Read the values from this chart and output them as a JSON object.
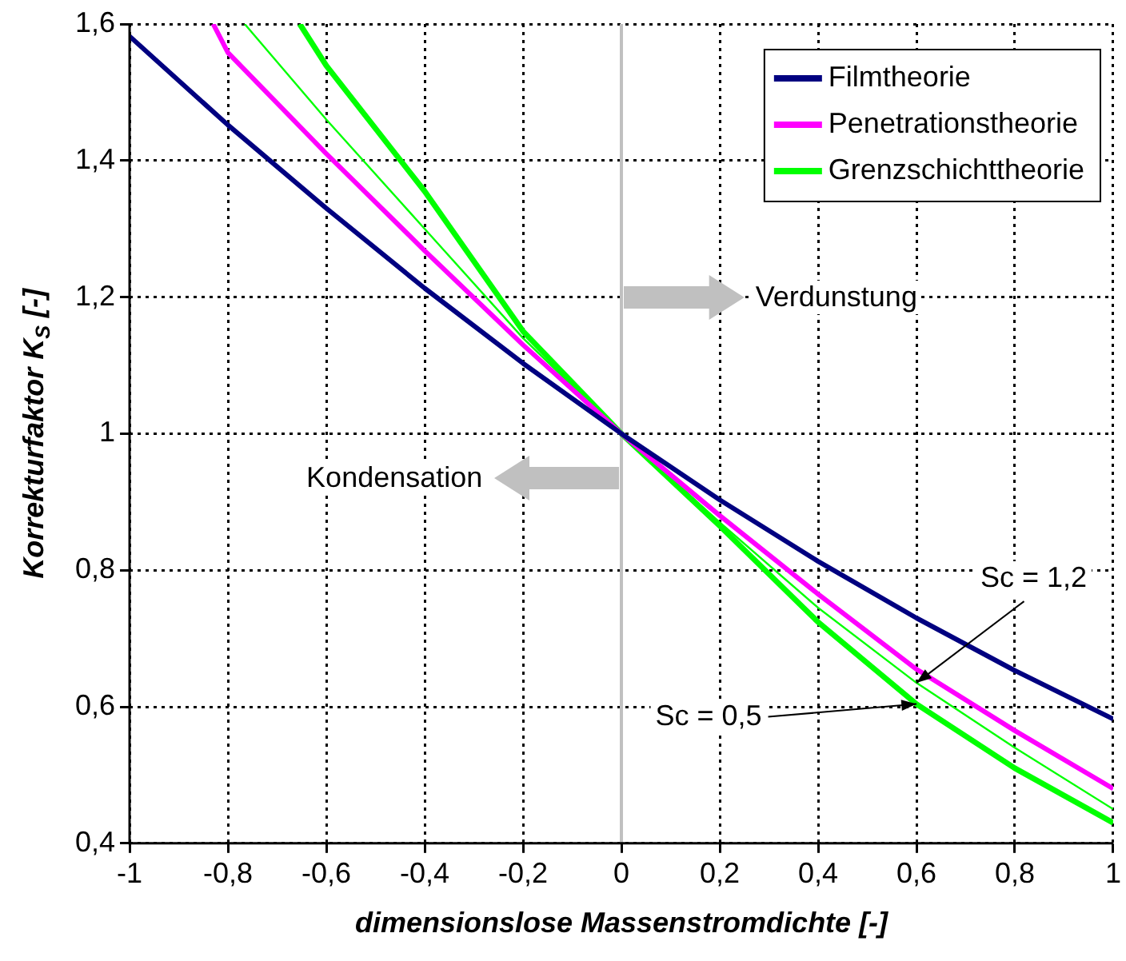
{
  "chart_data": {
    "type": "line",
    "xlabel": "dimensionslose Massenstromdichte [-]",
    "ylabel": "Korrekturfaktor K$_{S}$ [-]",
    "xlim": [
      -1,
      1
    ],
    "xticks": [
      -1,
      {
        "value": -0.8,
        "label": "-0,8"
      },
      {
        "value": -0.6,
        "label": "-0,6"
      },
      {
        "value": -0.4,
        "label": "-0,4"
      },
      {
        "value": -0.2,
        "label": "-0,2"
      },
      0,
      {
        "value": 0.2,
        "label": "0,2"
      },
      {
        "value": 0.4,
        "label": "0,4"
      },
      {
        "value": 0.6,
        "label": "0,6"
      },
      {
        "value": 0.8,
        "label": "0,8"
      },
      1
    ],
    "ylim": [
      0.4,
      1.6
    ],
    "yticks": [
      {
        "value": 0.4,
        "label": "0,4"
      },
      {
        "value": 0.6,
        "label": "0,6"
      },
      {
        "value": 0.8,
        "label": "0,8"
      },
      1,
      {
        "value": 1.2,
        "label": "1,2"
      },
      {
        "value": 1.4,
        "label": "1,4"
      },
      {
        "value": 1.6,
        "label": "1,6"
      }
    ],
    "grid": true,
    "legend": "top right",
    "marker": "none",
    "line_style": "solid",
    "series": [
      {
        "name": "Filmtheorie",
        "color": "#000080",
        "x": [
          -1,
          -0.8,
          -0.6,
          -0.4,
          -0.2,
          0,
          0.2,
          0.4,
          0.6,
          0.8,
          1
        ],
        "values": [
          1.582,
          1.452,
          1.33,
          1.213,
          1.103,
          1,
          0.903,
          0.813,
          0.73,
          0.653,
          0.582
        ]
      },
      {
        "name": "Penetrationstheorie",
        "color": "#ff00ff",
        "x": [
          -0.83,
          -0.8,
          -0.6,
          -0.4,
          -0.2,
          0,
          0.2,
          0.4,
          0.6,
          0.8,
          1
        ],
        "values": [
          1.6,
          1.558,
          1.41,
          1.268,
          1.13,
          1,
          0.88,
          0.765,
          0.655,
          0.565,
          0.48
        ]
      },
      {
        "name": "Grenzschichttheorie",
        "color": "#00ff00",
        "x": [
          -0.654,
          -0.6,
          -0.4,
          -0.2,
          0,
          0.2,
          0.4,
          0.6,
          0.8,
          1
        ],
        "values": [
          1.6,
          1.539,
          1.355,
          1.15,
          1,
          0.865,
          0.724,
          0.604,
          0.51,
          0.43
        ]
      },
      {
        "color": "#00ff00",
        "x": [
          -0.766,
          -0.6,
          -0.4,
          -0.2,
          0,
          0.2,
          0.4,
          0.6,
          0.8,
          1
        ],
        "values": [
          1.6,
          1.46,
          1.3,
          1.14,
          1,
          0.87,
          0.745,
          0.635,
          0.54,
          0.45
        ]
      }
    ],
    "ref_lines": [
      {
        "axis": "x",
        "value": 0,
        "color": "#c0c0c0"
      }
    ],
    "annotations": [
      "Verdunstung",
      "Kondensation",
      {
        "text": "Sc = 1,2",
        "x": 0.6,
        "y": 0.635
      },
      {
        "text": "Sc = 0,5",
        "x": 0.6,
        "y": 0.604
      }
    ]
  }
}
